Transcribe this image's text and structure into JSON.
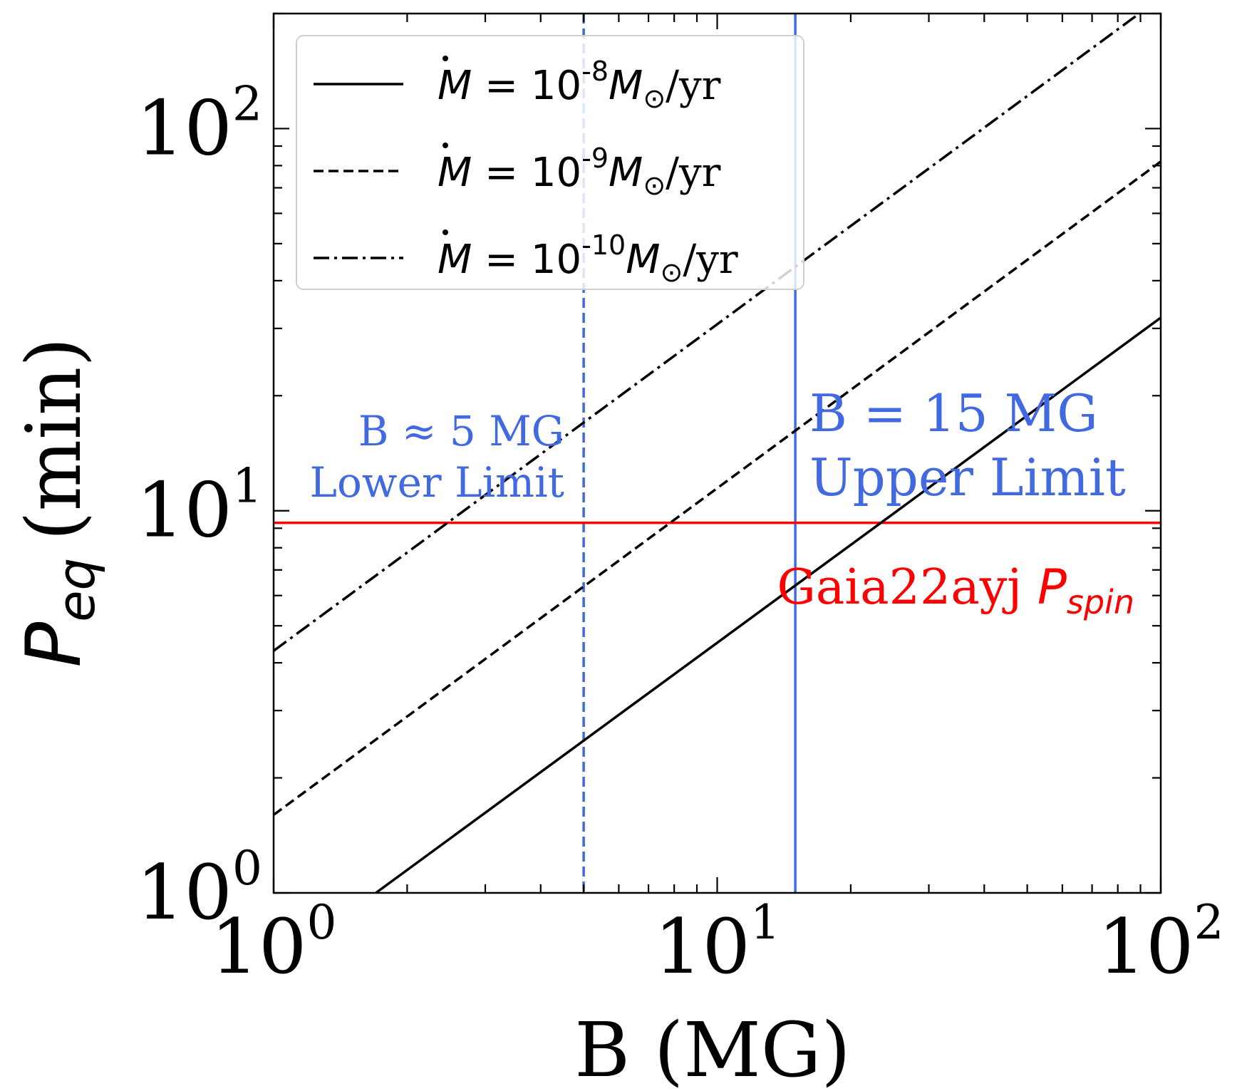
{
  "chart_data": {
    "type": "line",
    "xscale": "log",
    "yscale": "log",
    "xlim": [
      1,
      100
    ],
    "ylim": [
      1,
      200
    ],
    "xlabel": "B (MG)",
    "ylabel": {
      "base": "P",
      "sub": "eq",
      "unit": "(min)"
    },
    "xticks": [
      {
        "value": 1,
        "base": "10",
        "exp": "0"
      },
      {
        "value": 10,
        "base": "10",
        "exp": "1"
      },
      {
        "value": 100,
        "base": "10",
        "exp": "2"
      }
    ],
    "yticks": [
      {
        "value": 1,
        "base": "10",
        "exp": "0"
      },
      {
        "value": 10,
        "base": "10",
        "exp": "1"
      },
      {
        "value": 100,
        "base": "10",
        "exp": "2"
      }
    ],
    "series": [
      {
        "name": "Mdot = 10^-8 Msun/yr",
        "legend_exp": "-8",
        "style": "solid",
        "color": "#000000",
        "x": [
          1.7,
          100
        ],
        "y": [
          1.0,
          32
        ]
      },
      {
        "name": "Mdot = 10^-9 Msun/yr",
        "legend_exp": "-9",
        "style": "dashed",
        "color": "#000000",
        "x": [
          1,
          100
        ],
        "y": [
          1.6,
          82
        ]
      },
      {
        "name": "Mdot = 10^-10 Msun/yr",
        "legend_exp": "-10",
        "style": "dashdot",
        "color": "#000000",
        "x": [
          1,
          100
        ],
        "y": [
          4.3,
          220
        ]
      }
    ],
    "legend": {
      "position": "top-left",
      "prefix": "M",
      "eq": " = 10",
      "unit_mid": "M",
      "unit_sun": "⊙",
      "unit_end": "/yr"
    },
    "reference_lines": [
      {
        "orientation": "vertical",
        "value": 5,
        "style": "dashed",
        "color": "#4169e1",
        "label_line1": "B ≈ 5 MG",
        "label_line2": "Lower Limit"
      },
      {
        "orientation": "vertical",
        "value": 15,
        "style": "solid",
        "color": "#4169e1",
        "label_line1": "B = 15 MG",
        "label_line2": "Upper Limit"
      },
      {
        "orientation": "horizontal",
        "value": 9.3,
        "style": "solid",
        "color": "#ff0000",
        "label": "Gaia22ayj",
        "label_sym": "P",
        "label_sub": "spin"
      }
    ],
    "grid": false
  }
}
